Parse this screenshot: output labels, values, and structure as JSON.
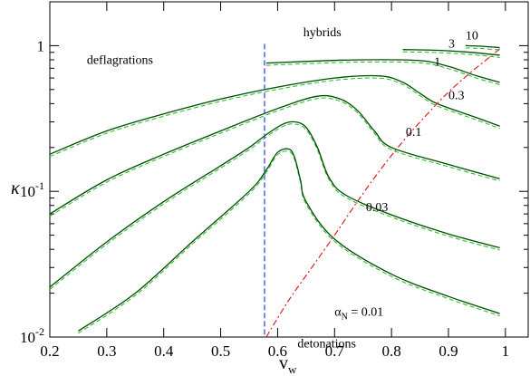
{
  "chart_data": {
    "type": "line",
    "title": "",
    "xlabel": "v",
    "xlabel_sub": "w",
    "ylabel": "κ",
    "xlim": [
      0.2,
      1.04
    ],
    "ylim": [
      0.01,
      2
    ],
    "yscale": "log",
    "grid": false,
    "x_ticks": [
      0.2,
      0.3,
      0.4,
      0.5,
      0.6,
      0.7,
      0.8,
      0.9,
      1
    ],
    "x_tick_labels": [
      "0.2",
      "0.3",
      "0.4",
      "0.5",
      "0.6",
      "0.7",
      "0.8",
      "0.9",
      "1"
    ],
    "y_ticks": [
      {
        "value": 0.01,
        "base": "10",
        "exp": "-2"
      },
      {
        "value": 0.1,
        "base": "10",
        "exp": "-1"
      },
      {
        "value": 1,
        "base": "1",
        "exp": ""
      }
    ],
    "series": [
      {
        "label": "",
        "label_pos": [
          0.7,
          0.014
        ],
        "color": "#004d00",
        "x": [
          0.25,
          0.35,
          0.45,
          0.55,
          0.58,
          0.6,
          0.62,
          0.63,
          0.64,
          0.65,
          0.7,
          0.8,
          0.9,
          0.99
        ],
        "y": [
          0.011,
          0.02,
          0.045,
          0.1,
          0.14,
          0.185,
          0.195,
          0.17,
          0.12,
          0.085,
          0.047,
          0.027,
          0.019,
          0.0145
        ]
      },
      {
        "label": "0.03",
        "label_pos": [
          0.755,
          0.073
        ],
        "color": "#004d00",
        "x": [
          0.2,
          0.3,
          0.4,
          0.5,
          0.55,
          0.58,
          0.61,
          0.63,
          0.65,
          0.67,
          0.69,
          0.72,
          0.8,
          0.9,
          0.99
        ],
        "y": [
          0.022,
          0.045,
          0.085,
          0.15,
          0.2,
          0.245,
          0.29,
          0.3,
          0.275,
          0.2,
          0.125,
          0.094,
          0.069,
          0.051,
          0.041
        ]
      },
      {
        "label": "0.1",
        "label_pos": [
          0.825,
          0.24
        ],
        "color": "#004d00",
        "x": [
          0.2,
          0.3,
          0.4,
          0.5,
          0.6,
          0.67,
          0.71,
          0.74,
          0.77,
          0.8,
          0.9,
          0.99
        ],
        "y": [
          0.07,
          0.12,
          0.18,
          0.26,
          0.37,
          0.45,
          0.43,
          0.36,
          0.26,
          0.2,
          0.153,
          0.122
        ]
      },
      {
        "label": "0.3",
        "label_pos": [
          0.9,
          0.43
        ],
        "color": "#004d00",
        "x": [
          0.2,
          0.3,
          0.4,
          0.5,
          0.6,
          0.7,
          0.78,
          0.82,
          0.85,
          0.88,
          0.95,
          0.99
        ],
        "y": [
          0.18,
          0.26,
          0.34,
          0.43,
          0.52,
          0.6,
          0.62,
          0.56,
          0.47,
          0.4,
          0.32,
          0.28
        ]
      },
      {
        "label": "1",
        "label_pos": [
          0.875,
          0.73
        ],
        "color": "#004d00",
        "x": [
          0.58,
          0.65,
          0.75,
          0.85,
          0.9,
          0.95,
          0.99
        ],
        "y": [
          0.76,
          0.78,
          0.8,
          0.79,
          0.72,
          0.62,
          0.56
        ]
      },
      {
        "label": "3",
        "label_pos": [
          0.9,
          0.97
        ],
        "color": "#004d00",
        "x": [
          0.82,
          0.88,
          0.94,
          0.99
        ],
        "y": [
          0.94,
          0.93,
          0.9,
          0.86
        ]
      },
      {
        "label": "10",
        "label_pos": [
          0.93,
          1.1
        ],
        "color": "#004d00",
        "x": [
          0.93,
          0.96,
          0.99
        ],
        "y": [
          1.0,
          0.99,
          0.97
        ]
      }
    ],
    "jouguet_line": {
      "color": "#e02020",
      "x": [
        0.58,
        0.62,
        0.66,
        0.7,
        0.74,
        0.78,
        0.82,
        0.86,
        0.9,
        0.94,
        0.97,
        0.99
      ],
      "y": [
        0.01,
        0.018,
        0.03,
        0.05,
        0.085,
        0.14,
        0.22,
        0.33,
        0.48,
        0.66,
        0.82,
        0.95
      ]
    },
    "sound_speed_line": {
      "x": 0.577,
      "y_top": 1.0,
      "color": "#1f3fe0"
    },
    "alpha_label": {
      "symbol": "α",
      "sub": "N",
      "rest": " = 0.01"
    },
    "annotations": [
      {
        "text": "deflagrations",
        "x": 0.265,
        "y": 0.75
      },
      {
        "text": "hybrids",
        "x": 0.645,
        "y": 1.16
      },
      {
        "text": "detonations",
        "x": 0.635,
        "y": 0.0085
      }
    ]
  }
}
